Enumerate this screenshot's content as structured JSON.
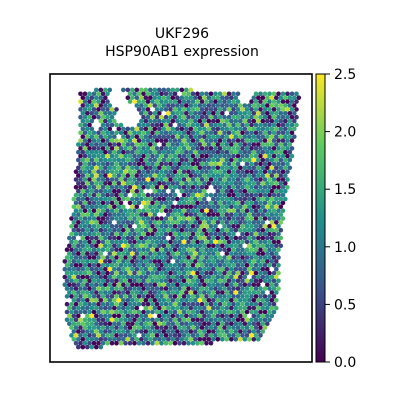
{
  "chart_data": {
    "type": "scatter",
    "title": "UKF296",
    "subtitle": "HSP90AB1 expression",
    "colormap": [
      "#440154",
      "#3b528b",
      "#21918c",
      "#5ec962",
      "#fde725"
    ],
    "colorbar": {
      "vmin": 0.0,
      "vmax": 2.5,
      "ticks": [
        "0.0",
        "0.5",
        "1.0",
        "1.5",
        "2.0",
        "2.5"
      ]
    },
    "spots": {
      "grid_step": 4.5,
      "tissue_outline": [
        [
          78,
          92
        ],
        [
          100,
          88
        ],
        [
          300,
          92
        ],
        [
          296,
          132
        ],
        [
          285,
          205
        ],
        [
          280,
          255
        ],
        [
          278,
          305
        ],
        [
          262,
          340
        ],
        [
          250,
          342
        ],
        [
          75,
          348
        ],
        [
          66,
          320
        ],
        [
          64,
          265
        ],
        [
          72,
          215
        ],
        [
          76,
          165
        ],
        [
          80,
          120
        ]
      ],
      "gaps": [
        [
          128,
          115,
          12
        ],
        [
          118,
          98,
          9
        ],
        [
          245,
          98,
          6
        ],
        [
          180,
          195,
          4
        ],
        [
          210,
          190,
          4
        ],
        [
          95,
          125,
          5
        ]
      ],
      "value_distribution": {
        "mean": 1.15,
        "sd": 0.55
      }
    }
  }
}
